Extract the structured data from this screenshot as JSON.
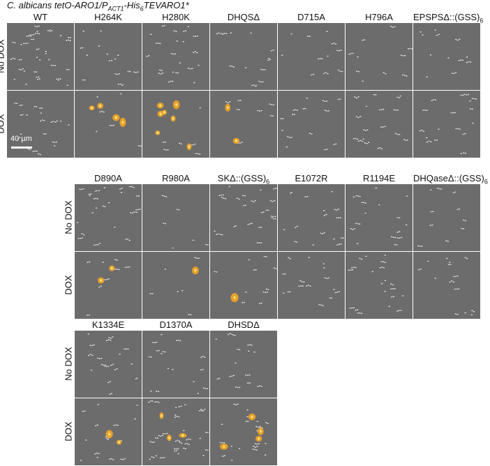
{
  "figure": {
    "title_parts": {
      "p1": "C. albicans tetO-ARO1/P",
      "sub1": "ACT1",
      "p2": "-His",
      "sub2": "6",
      "p3": "TEVARO1*"
    },
    "row_labels": {
      "no_dox": "No DOX",
      "dox": "DOX"
    },
    "scale_bar": "40 µm",
    "groups": [
      {
        "strains": [
          {
            "name": "WT",
            "sub": "",
            "cells_no": 34,
            "cells_dox": 20,
            "fluor": 0
          },
          {
            "name": "H264K",
            "sub": "",
            "cells_no": 16,
            "cells_dox": 6,
            "fluor": 4
          },
          {
            "name": "H280K",
            "sub": "",
            "cells_no": 22,
            "cells_dox": 6,
            "fluor": 7
          },
          {
            "name": "DHQSΔ",
            "sub": "",
            "cells_no": 14,
            "cells_dox": 8,
            "fluor": 2
          },
          {
            "name": "D715A",
            "sub": "",
            "cells_no": 12,
            "cells_dox": 14,
            "fluor": 0
          },
          {
            "name": "H796A",
            "sub": "",
            "cells_no": 10,
            "cells_dox": 18,
            "fluor": 0
          },
          {
            "name": "EPSPSΔ::(GSS)",
            "sub": "6",
            "cells_no": 12,
            "cells_dox": 18,
            "fluor": 0
          }
        ]
      },
      {
        "strains": [
          {
            "name": "D890A",
            "sub": "",
            "cells_no": 26,
            "cells_dox": 8,
            "fluor": 2
          },
          {
            "name": "R980A",
            "sub": "",
            "cells_no": 6,
            "cells_dox": 6,
            "fluor": 1
          },
          {
            "name": "SKΔ::(GSS)",
            "sub": "6",
            "cells_no": 22,
            "cells_dox": 10,
            "fluor": 1
          },
          {
            "name": "E1072R",
            "sub": "",
            "cells_no": 16,
            "cells_dox": 16,
            "fluor": 0
          },
          {
            "name": "R1194E",
            "sub": "",
            "cells_no": 16,
            "cells_dox": 20,
            "fluor": 0
          },
          {
            "name": "DHQaseΔ::(GSS)",
            "sub": "6",
            "cells_no": 10,
            "cells_dox": 14,
            "fluor": 0
          }
        ]
      },
      {
        "strains": [
          {
            "name": "K1334E",
            "sub": "",
            "cells_no": 18,
            "cells_dox": 16,
            "fluor": 2
          },
          {
            "name": "D1370A",
            "sub": "",
            "cells_no": 16,
            "cells_dox": 30,
            "fluor": 3
          },
          {
            "name": "DHSDΔ",
            "sub": "",
            "cells_no": 14,
            "cells_dox": 20,
            "fluor": 4
          }
        ]
      }
    ],
    "colors": {
      "panel_bg": "#6c6c6c",
      "cell": "#d8d8d8",
      "fluor": "#f5a623"
    }
  }
}
